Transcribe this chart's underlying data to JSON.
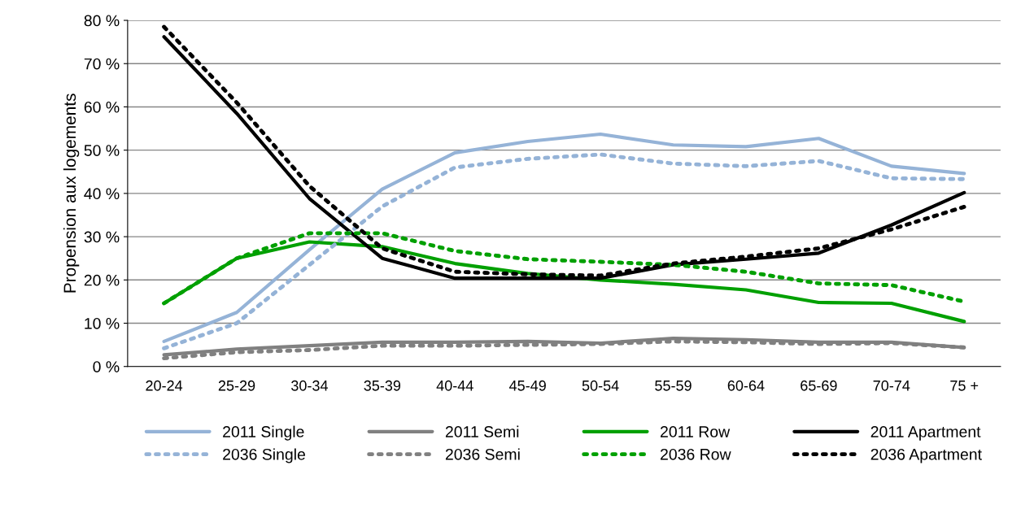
{
  "chart_data": {
    "type": "line",
    "ylabel": "Propension aux logements",
    "categories": [
      "20-24",
      "25-29",
      "30-34",
      "35-39",
      "40-44",
      "45-49",
      "50-54",
      "55-59",
      "60-64",
      "65-69",
      "70-74",
      "75 +"
    ],
    "ylim": [
      0,
      80
    ],
    "yticks": [
      {
        "value": 0,
        "label": "0 %"
      },
      {
        "value": 10,
        "label": "10 %"
      },
      {
        "value": 20,
        "label": "20 %"
      },
      {
        "value": 30,
        "label": "30 %"
      },
      {
        "value": 40,
        "label": "40 %"
      },
      {
        "value": 50,
        "label": "50 %"
      },
      {
        "value": 60,
        "label": "60 %"
      },
      {
        "value": 70,
        "label": "70 %"
      },
      {
        "value": 80,
        "label": "80 %"
      }
    ],
    "grid": "y",
    "legend": "bottom",
    "marker": "none",
    "series": [
      {
        "name": "2011 Single",
        "color": "#95b3d7",
        "line_style": "solid",
        "values": [
          5.8,
          12.5,
          27,
          41,
          49.4,
          52,
          53.7,
          51.2,
          50.8,
          52.7,
          46.3,
          44.6
        ]
      },
      {
        "name": "2011 Semi",
        "color": "#808080",
        "line_style": "solid",
        "values": [
          2.7,
          4,
          4.8,
          5.6,
          5.6,
          5.8,
          5.4,
          6.5,
          6.2,
          5.6,
          5.6,
          4.4
        ]
      },
      {
        "name": "2011 Row",
        "color": "#00a000",
        "line_style": "solid",
        "values": [
          14.6,
          25,
          28.8,
          27.7,
          23.8,
          21.5,
          20,
          19,
          17.7,
          14.8,
          14.6,
          10.4
        ]
      },
      {
        "name": "2011 Apartment",
        "color": "#000000",
        "line_style": "solid",
        "values": [
          76.2,
          58.5,
          38.8,
          25,
          20.4,
          20.4,
          20.4,
          23.5,
          24.8,
          26.2,
          32.7,
          40.2
        ]
      },
      {
        "name": "2036 Single",
        "color": "#95b3d7",
        "line_style": "dotted",
        "values": [
          4.2,
          10,
          23.5,
          37,
          46,
          48,
          49,
          46.9,
          46.3,
          47.5,
          43.5,
          43.3
        ]
      },
      {
        "name": "2036 Semi",
        "color": "#808080",
        "line_style": "dotted",
        "values": [
          1.9,
          3.3,
          3.8,
          4.8,
          4.8,
          5,
          5.2,
          5.8,
          5.6,
          5.2,
          5.4,
          4.4
        ]
      },
      {
        "name": "2036 Row",
        "color": "#00a000",
        "line_style": "dotted",
        "values": [
          14.6,
          25,
          30.8,
          30.8,
          26.7,
          24.8,
          24.2,
          23.5,
          21.9,
          19.2,
          18.8,
          15
        ]
      },
      {
        "name": "2036 Apartment",
        "color": "#000000",
        "line_style": "dotted",
        "values": [
          78.5,
          61,
          41.7,
          27.3,
          21.9,
          21.3,
          21,
          23.8,
          25.4,
          27.3,
          31.7,
          36.9
        ]
      }
    ]
  }
}
